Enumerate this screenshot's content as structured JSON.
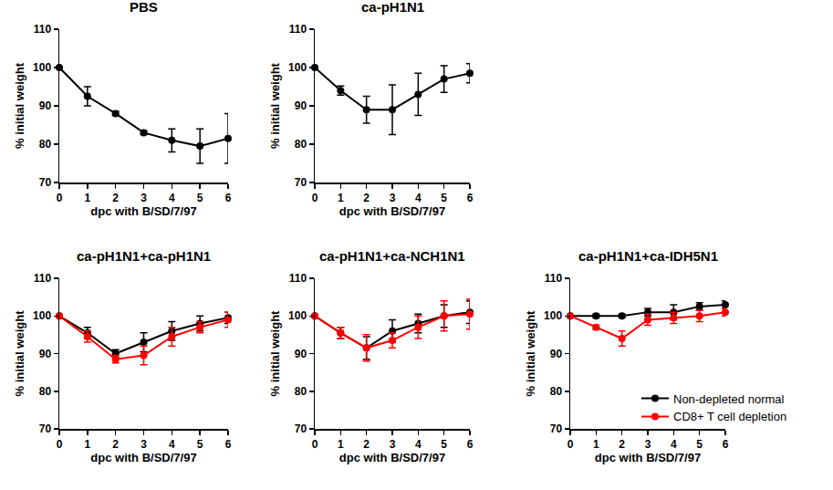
{
  "chart_data": [
    {
      "type": "line",
      "title": "PBS",
      "x_label": "dpc with B/SD/7/97",
      "y_label": "% initial weight",
      "x": [
        0,
        1,
        2,
        3,
        4,
        5,
        6
      ],
      "xlim": [
        0,
        6
      ],
      "xticks": [
        0,
        1,
        2,
        3,
        4,
        5,
        6
      ],
      "ylim": [
        70,
        110
      ],
      "yticks": [
        70,
        80,
        90,
        100,
        110
      ],
      "series": [
        {
          "color": "#000000",
          "marker": "circle",
          "values": [
            100,
            92.5,
            88,
            83,
            81,
            79.5,
            81.5
          ],
          "error": [
            0,
            2.5,
            0.5,
            0.5,
            3,
            4.5,
            6.5
          ]
        }
      ]
    },
    {
      "type": "line",
      "title": "ca-pH1N1",
      "x_label": "dpc with B/SD/7/97",
      "y_label": "% initial weight",
      "x": [
        0,
        1,
        2,
        3,
        4,
        5,
        6
      ],
      "xlim": [
        0,
        6
      ],
      "xticks": [
        0,
        1,
        2,
        3,
        4,
        5,
        6
      ],
      "ylim": [
        70,
        110
      ],
      "yticks": [
        70,
        80,
        90,
        100,
        110
      ],
      "series": [
        {
          "color": "#000000",
          "marker": "circle",
          "values": [
            100,
            94,
            89,
            89,
            93,
            97,
            98.5
          ],
          "error": [
            0,
            1.2,
            3.5,
            6.5,
            5.5,
            3.5,
            2.5
          ]
        }
      ]
    },
    {
      "type": "line",
      "title": "ca-pH1N1+ca-pH1N1",
      "x_label": "dpc with B/SD/7/97",
      "y_label": "% initial weight",
      "x": [
        0,
        1,
        2,
        3,
        4,
        5,
        6
      ],
      "xlim": [
        0,
        6
      ],
      "xticks": [
        0,
        1,
        2,
        3,
        4,
        5,
        6
      ],
      "ylim": [
        70,
        110
      ],
      "yticks": [
        70,
        80,
        90,
        100,
        110
      ],
      "series": [
        {
          "name": "Non-depleted normal",
          "color": "#000000",
          "marker": "circle",
          "values": [
            100,
            95.5,
            90,
            93,
            96,
            98,
            99.5
          ],
          "error": [
            0,
            1.5,
            1,
            2.5,
            2.5,
            2,
            1.5
          ]
        },
        {
          "name": "CD8+ T cell depletion",
          "color": "#ff0000",
          "marker": "circle",
          "values": [
            100,
            94.5,
            88.5,
            89.5,
            94.5,
            97,
            99
          ],
          "error": [
            0,
            1.5,
            1,
            2.5,
            2.5,
            1.5,
            2
          ]
        }
      ]
    },
    {
      "type": "line",
      "title": "ca-pH1N1+ca-NCH1N1",
      "x_label": "dpc with B/SD/7/97",
      "y_label": "% initial weight",
      "x": [
        0,
        1,
        2,
        3,
        4,
        5,
        6
      ],
      "xlim": [
        0,
        6
      ],
      "xticks": [
        0,
        1,
        2,
        3,
        4,
        5,
        6
      ],
      "ylim": [
        70,
        110
      ],
      "yticks": [
        70,
        80,
        90,
        100,
        110
      ],
      "series": [
        {
          "name": "Non-depleted normal",
          "color": "#000000",
          "marker": "circle",
          "values": [
            100,
            95.5,
            91.5,
            96,
            98,
            100,
            101
          ],
          "error": [
            0,
            1.5,
            3,
            3,
            2.5,
            3,
            3
          ]
        },
        {
          "name": "CD8+ T cell depletion",
          "color": "#ff0000",
          "marker": "circle",
          "values": [
            100,
            95.5,
            91.5,
            93.5,
            97,
            100,
            100.5
          ],
          "error": [
            0,
            1.5,
            3.5,
            2,
            3,
            4,
            4
          ]
        }
      ]
    },
    {
      "type": "line",
      "title": "ca-pH1N1+ca-IDH5N1",
      "x_label": "dpc with B/SD/7/97",
      "y_label": "% initial weight",
      "x": [
        0,
        1,
        2,
        3,
        4,
        5,
        6
      ],
      "xlim": [
        0,
        6
      ],
      "xticks": [
        0,
        1,
        2,
        3,
        4,
        5,
        6
      ],
      "ylim": [
        70,
        110
      ],
      "yticks": [
        70,
        80,
        90,
        100,
        110
      ],
      "legend": "lower right",
      "series": [
        {
          "name": "Non-depleted normal",
          "color": "#000000",
          "marker": "circle",
          "values": [
            100,
            100,
            100,
            101,
            101,
            102.5,
            103
          ],
          "error": [
            0,
            0.5,
            0.5,
            1,
            2,
            1,
            1
          ]
        },
        {
          "name": "CD8+ T cell depletion",
          "color": "#ff0000",
          "marker": "circle",
          "values": [
            100,
            97,
            94,
            99,
            99.5,
            100,
            101
          ],
          "error": [
            0,
            0.5,
            2,
            1.5,
            1.5,
            1.5,
            1
          ]
        }
      ]
    }
  ]
}
